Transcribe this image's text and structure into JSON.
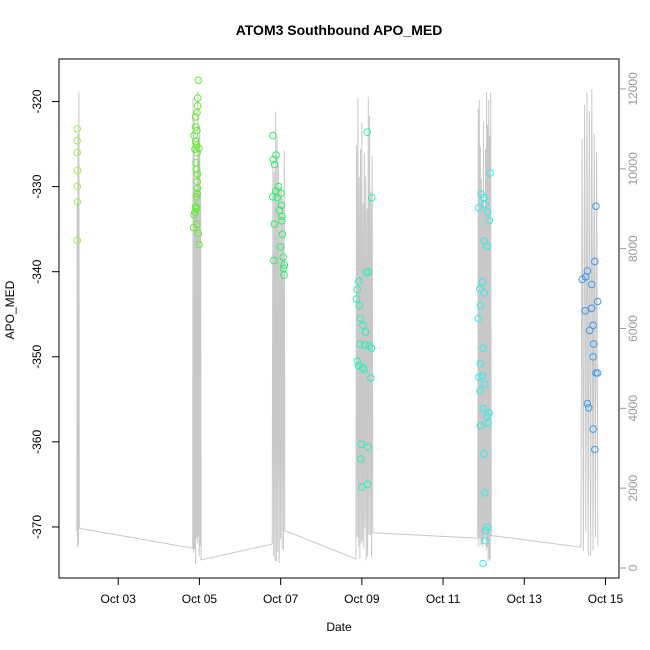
{
  "chart_data": {
    "type": "scatter",
    "title": "ATOM3 Southbound APO_MED",
    "xlabel": "Date",
    "ylabel": "APO_MED",
    "xlim": [
      "2016-10-01T13:00",
      "2016-10-15T08:00"
    ],
    "ylim": [
      -376,
      -315
    ],
    "y2lim": [
      -250,
      12750
    ],
    "x_ticks": [
      {
        "label": "Oct 03",
        "t": "2016-10-03T00:00"
      },
      {
        "label": "Oct 05",
        "t": "2016-10-05T00:00"
      },
      {
        "label": "Oct 07",
        "t": "2016-10-07T00:00"
      },
      {
        "label": "Oct 09",
        "t": "2016-10-09T00:00"
      },
      {
        "label": "Oct 11",
        "t": "2016-10-11T00:00"
      },
      {
        "label": "Oct 13",
        "t": "2016-10-13T00:00"
      },
      {
        "label": "Oct 15",
        "t": "2016-10-15T00:00"
      }
    ],
    "y_ticks": [
      "-320",
      "-330",
      "-340",
      "-350",
      "-360",
      "-370"
    ],
    "y2_ticks": [
      "0",
      "2000",
      "4000",
      "6000",
      "8000",
      "10000",
      "12000"
    ],
    "colors": {
      "series_gradient": [
        "#a6ee4c",
        "#3ef02e",
        "#2fee7c",
        "#2dee9a",
        "#2deeee",
        "#2fd0ee",
        "#3b9ae8"
      ],
      "line": "#c8c8c8"
    },
    "series": [
      {
        "color": "#a6ee4c",
        "points": [
          [
            "2016-10-01T23:45",
            -323.2
          ],
          [
            "2016-10-01T23:45",
            -324.6
          ],
          [
            "2016-10-01T23:45",
            -326.0
          ],
          [
            "2016-10-02T00:00",
            -328.1
          ],
          [
            "2016-10-01T23:50",
            -330.0
          ],
          [
            "2016-10-02T00:00",
            -331.8
          ],
          [
            "2016-10-01T23:50",
            -336.3
          ]
        ]
      },
      {
        "color": "#62ee30",
        "points": [
          [
            "2016-10-04T23:20",
            -317.5
          ],
          [
            "2016-10-04T23:00",
            -319.6
          ],
          [
            "2016-10-04T23:00",
            -320.5
          ],
          [
            "2016-10-04T22:30",
            -321.3
          ],
          [
            "2016-10-04T21:40",
            -321.8
          ],
          [
            "2016-10-04T21:40",
            -323.0
          ],
          [
            "2016-10-04T22:30",
            -323.4
          ],
          [
            "2016-10-04T20:50",
            -324.0
          ],
          [
            "2016-10-04T21:40",
            -324.7
          ],
          [
            "2016-10-04T22:20",
            -325.1
          ],
          [
            "2016-10-04T23:40",
            -325.5
          ],
          [
            "2016-10-04T21:20",
            -325.6
          ],
          [
            "2016-10-04T22:40",
            -326.0
          ],
          [
            "2016-10-04T22:00",
            -327.2
          ],
          [
            "2016-10-04T22:20",
            -328.0
          ],
          [
            "2016-10-04T23:00",
            -328.5
          ],
          [
            "2016-10-04T22:50",
            -329.4
          ],
          [
            "2016-10-04T23:00",
            -330.2
          ],
          [
            "2016-10-04T22:40",
            -330.8
          ],
          [
            "2016-10-04T22:10",
            -331.2
          ],
          [
            "2016-10-04T21:40",
            -332.3
          ],
          [
            "2016-10-04T22:30",
            -332.5
          ],
          [
            "2016-10-04T22:00",
            -332.6
          ],
          [
            "2016-10-04T21:20",
            -333.0
          ],
          [
            "2016-10-04T20:50",
            -333.3
          ],
          [
            "2016-10-04T22:30",
            -334.4
          ],
          [
            "2016-10-04T20:40",
            -334.8
          ],
          [
            "2016-10-04T23:20",
            -335.5
          ],
          [
            "2016-10-04T23:50",
            -336.8
          ]
        ]
      },
      {
        "color": "#2fee6a",
        "points": [
          [
            "2016-10-06T19:30",
            -324.0
          ],
          [
            "2016-10-06T21:20",
            -326.3
          ],
          [
            "2016-10-06T19:40",
            -326.8
          ],
          [
            "2016-10-06T20:30",
            -327.4
          ],
          [
            "2016-10-06T19:20",
            -331.2
          ],
          [
            "2016-10-06T22:40",
            -330.0
          ],
          [
            "2016-10-06T21:00",
            -330.5
          ],
          [
            "2016-10-07T00:10",
            -330.8
          ],
          [
            "2016-10-06T22:00",
            -331.3
          ],
          [
            "2016-10-07T00:30",
            -332.2
          ],
          [
            "2016-10-06T23:20",
            -332.8
          ],
          [
            "2016-10-07T00:50",
            -333.5
          ],
          [
            "2016-10-07T00:40",
            -334.0
          ],
          [
            "2016-10-06T20:20",
            -334.4
          ],
          [
            "2016-10-07T01:00",
            -335.6
          ],
          [
            "2016-10-06T23:50",
            -337.1
          ],
          [
            "2016-10-07T01:30",
            -338.3
          ],
          [
            "2016-10-06T20:00",
            -338.7
          ],
          [
            "2016-10-07T02:10",
            -339.2
          ],
          [
            "2016-10-07T01:40",
            -339.6
          ],
          [
            "2016-10-07T02:00",
            -340.4
          ]
        ]
      },
      {
        "color": "#2deebb",
        "points": [
          [
            "2016-10-09T03:10",
            -323.6
          ],
          [
            "2016-10-09T05:50",
            -331.3
          ],
          [
            "2016-10-08T22:00",
            -341.1
          ],
          [
            "2016-10-08T21:20",
            -342.1
          ],
          [
            "2016-10-08T20:50",
            -343.2
          ],
          [
            "2016-10-09T04:00",
            -340.0
          ],
          [
            "2016-10-09T02:40",
            -340.1
          ],
          [
            "2016-10-08T22:30",
            -344.0
          ],
          [
            "2016-10-08T23:10",
            -345.5
          ],
          [
            "2016-10-09T00:40",
            -346.3
          ],
          [
            "2016-10-09T02:10",
            -347.1
          ],
          [
            "2016-10-08T22:50",
            -348.5
          ],
          [
            "2016-10-09T01:50",
            -348.6
          ],
          [
            "2016-10-09T04:30",
            -348.7
          ],
          [
            "2016-10-09T05:40",
            -349.0
          ],
          [
            "2016-10-08T21:20",
            -350.5
          ],
          [
            "2016-10-08T22:00",
            -351.0
          ],
          [
            "2016-10-09T00:20",
            -351.3
          ],
          [
            "2016-10-09T01:20",
            -351.5
          ],
          [
            "2016-10-09T05:20",
            -352.5
          ],
          [
            "2016-10-08T23:40",
            -360.3
          ],
          [
            "2016-10-09T03:30",
            -360.6
          ],
          [
            "2016-10-08T23:20",
            -362.0
          ],
          [
            "2016-10-09T00:10",
            -365.3
          ],
          [
            "2016-10-09T03:20",
            -365.0
          ]
        ]
      },
      {
        "color": "#2deee6",
        "points": [
          [
            "2016-10-12T03:50",
            -328.4
          ],
          [
            "2016-10-11T22:30",
            -330.9
          ],
          [
            "2016-10-12T00:10",
            -331.3
          ],
          [
            "2016-10-11T21:00",
            -332.5
          ],
          [
            "2016-10-12T00:50",
            -332.1
          ],
          [
            "2016-10-12T02:20",
            -333.0
          ],
          [
            "2016-10-12T03:20",
            -334.0
          ],
          [
            "2016-10-12T00:30",
            -336.4
          ],
          [
            "2016-10-12T01:50",
            -337.0
          ],
          [
            "2016-10-11T23:10",
            -341.2
          ],
          [
            "2016-10-11T21:40",
            -342.0
          ],
          [
            "2016-10-12T00:20",
            -342.5
          ],
          [
            "2016-10-11T22:00",
            -344.0
          ],
          [
            "2016-10-11T20:50",
            -345.5
          ],
          [
            "2016-10-11T23:40",
            -349.0
          ],
          [
            "2016-10-11T22:00",
            -350.8
          ],
          [
            "2016-10-11T23:10",
            -352.2
          ],
          [
            "2016-10-11T21:10",
            -352.4
          ],
          [
            "2016-10-12T00:40",
            -353.2
          ],
          [
            "2016-10-11T21:50",
            -354.0
          ],
          [
            "2016-10-11T23:40",
            -356.1
          ],
          [
            "2016-10-12T01:50",
            -357.0
          ],
          [
            "2016-10-12T03:10",
            -356.6
          ],
          [
            "2016-10-12T02:40",
            -357.8
          ],
          [
            "2016-10-11T22:00",
            -358.1
          ],
          [
            "2016-10-12T00:10",
            -361.4
          ],
          [
            "2016-10-12T00:40",
            -366.0
          ],
          [
            "2016-10-12T02:10",
            -370.0
          ],
          [
            "2016-10-12T01:10",
            -370.4
          ],
          [
            "2016-10-12T00:50",
            -371.6
          ],
          [
            "2016-10-11T23:40",
            -374.3
          ]
        ]
      },
      {
        "color": "#3b9ae8",
        "points": [
          [
            "2016-10-14T18:20",
            -332.3
          ],
          [
            "2016-10-14T17:40",
            -338.8
          ],
          [
            "2016-10-14T13:20",
            -339.9
          ],
          [
            "2016-10-14T12:20",
            -340.6
          ],
          [
            "2016-10-14T10:20",
            -340.9
          ],
          [
            "2016-10-14T15:50",
            -341.5
          ],
          [
            "2016-10-14T19:20",
            -343.5
          ],
          [
            "2016-10-14T15:50",
            -344.3
          ],
          [
            "2016-10-14T12:00",
            -344.6
          ],
          [
            "2016-10-14T16:40",
            -346.3
          ],
          [
            "2016-10-14T14:40",
            -346.9
          ],
          [
            "2016-10-14T17:00",
            -348.5
          ],
          [
            "2016-10-14T16:40",
            -350.0
          ],
          [
            "2016-10-14T18:20",
            -351.9
          ],
          [
            "2016-10-14T19:20",
            -351.9
          ],
          [
            "2016-10-14T13:20",
            -355.5
          ],
          [
            "2016-10-14T14:10",
            -356.0
          ],
          [
            "2016-10-14T16:40",
            -358.5
          ],
          [
            "2016-10-14T17:40",
            -360.9
          ]
        ]
      }
    ]
  }
}
